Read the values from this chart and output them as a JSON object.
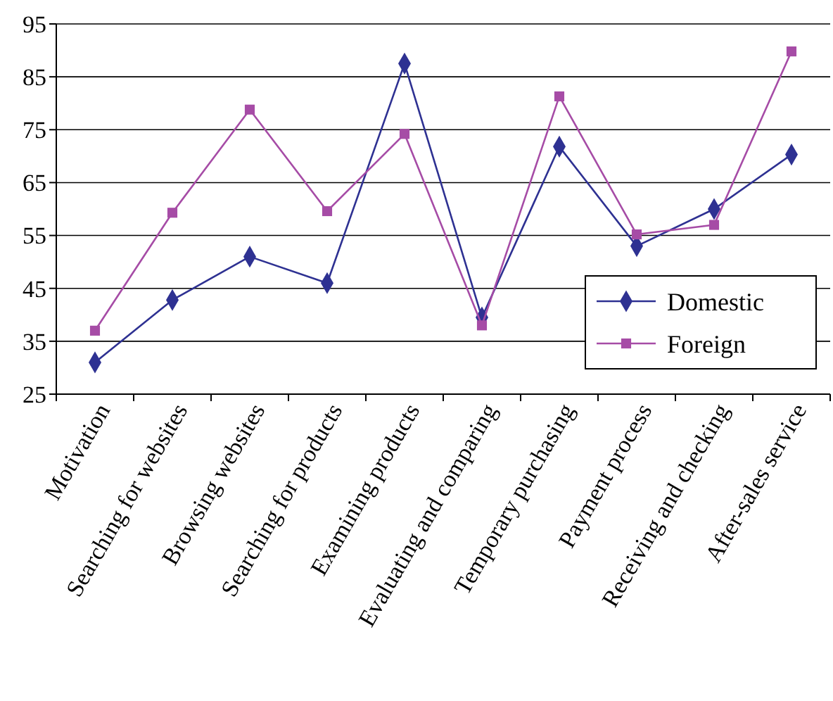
{
  "chart_data": {
    "type": "line",
    "categories": [
      "Motivation",
      "Searching for websites",
      "Browsing websites",
      "Searching for products",
      "Examining products",
      "Evaluating and comparing",
      "Temporary purchasing",
      "Payment process",
      "Receiving and checking",
      "After-sales service"
    ],
    "series": [
      {
        "name": "Domestic",
        "color": "#2e3192",
        "marker": "diamond",
        "values": [
          31,
          42.8,
          51,
          46,
          87.5,
          39.5,
          71.8,
          53,
          60,
          70.3
        ]
      },
      {
        "name": "Foreign",
        "color": "#a64ca6",
        "marker": "square",
        "values": [
          37,
          59.3,
          78.8,
          59.6,
          74.2,
          38,
          81.3,
          55.2,
          57,
          89.8
        ]
      }
    ],
    "ylim": [
      25,
      95
    ],
    "yticks": [
      25,
      35,
      45,
      55,
      65,
      75,
      85,
      95
    ],
    "grid": "y",
    "legend": "bottom right",
    "line_style": "solid"
  }
}
